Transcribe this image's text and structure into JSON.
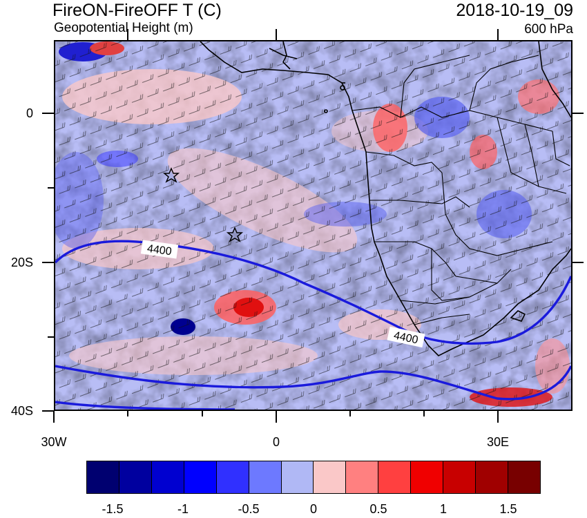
{
  "title": {
    "main": "FireON-FireOFF T (C)",
    "sub": "Geopotential Height (m)",
    "date": "2018-10-19_09",
    "level": "600 hPa"
  },
  "map": {
    "lat_labels": [
      "0",
      "20S",
      "40S"
    ],
    "lon_labels": [
      "30W",
      "0",
      "30E"
    ],
    "contour_label": "4400",
    "contour_color": "#1a1adc",
    "background": "#b8bdf5",
    "markers": [
      "star-icon",
      "star-icon"
    ]
  },
  "colorbar": {
    "colors": [
      "#000070",
      "#00009f",
      "#0000d0",
      "#0000ff",
      "#3030ff",
      "#6d79ff",
      "#b0b8f5",
      "#fac8c8",
      "#ff8080",
      "#ff4040",
      "#f00000",
      "#c80000",
      "#a00000",
      "#780000"
    ],
    "labels": [
      "-1.5",
      "-1",
      "-0.5",
      "0",
      "0.5",
      "1",
      "1.5"
    ]
  }
}
